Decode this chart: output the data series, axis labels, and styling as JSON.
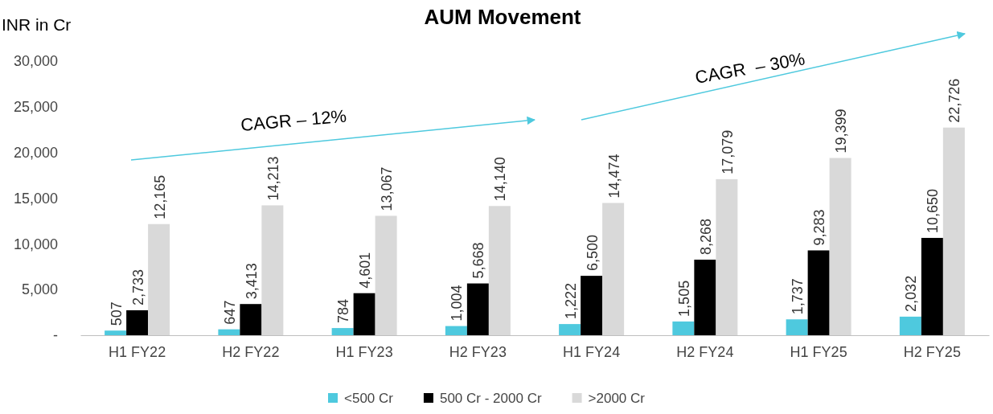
{
  "chart_data": {
    "type": "bar",
    "title": "AUM Movement",
    "ylabel": "INR in Cr",
    "categories": [
      "H1 FY22",
      "H2 FY22",
      "H1 FY23",
      "H2 FY23",
      "H1 FY24",
      "H2 FY24",
      "H1 FY25",
      "H2 FY25"
    ],
    "series": [
      {
        "name": "<500 Cr",
        "color": "#4ec9de",
        "values": [
          507,
          647,
          784,
          1004,
          1222,
          1505,
          1737,
          2032
        ],
        "value_labels": [
          "507",
          "647",
          "784",
          "1,004",
          "1,222",
          "1,505",
          "1,737",
          "2,032"
        ]
      },
      {
        "name": "500 Cr - 2000 Cr",
        "color": "#000000",
        "values": [
          2733,
          3413,
          4601,
          5668,
          6500,
          8268,
          9283,
          10650
        ],
        "value_labels": [
          "2,733",
          "3,413",
          "4,601",
          "5,668",
          "6,500",
          "8,268",
          "9,283",
          "10,650"
        ]
      },
      {
        "name": ">2000 Cr",
        "color": "#d9d9d9",
        "values": [
          12165,
          14213,
          13067,
          14140,
          14474,
          17079,
          19399,
          22726
        ],
        "value_labels": [
          "12,165",
          "14,213",
          "13,067",
          "14,140",
          "14,474",
          "17,079",
          "19,399",
          "22,726"
        ]
      }
    ],
    "ylim": [
      0,
      30000
    ],
    "yticks": [
      {
        "value": 0,
        "label": "-"
      },
      {
        "value": 5000,
        "label": "5,000"
      },
      {
        "value": 10000,
        "label": "10,000"
      },
      {
        "value": 15000,
        "label": "15,000"
      },
      {
        "value": 20000,
        "label": "20,000"
      },
      {
        "value": 25000,
        "label": "25,000"
      },
      {
        "value": 30000,
        "label": "30,000"
      }
    ],
    "legend": "bottom",
    "grid": false,
    "annotations": [
      "CAGR – 12%",
      "CAGR  – 30%"
    ]
  }
}
